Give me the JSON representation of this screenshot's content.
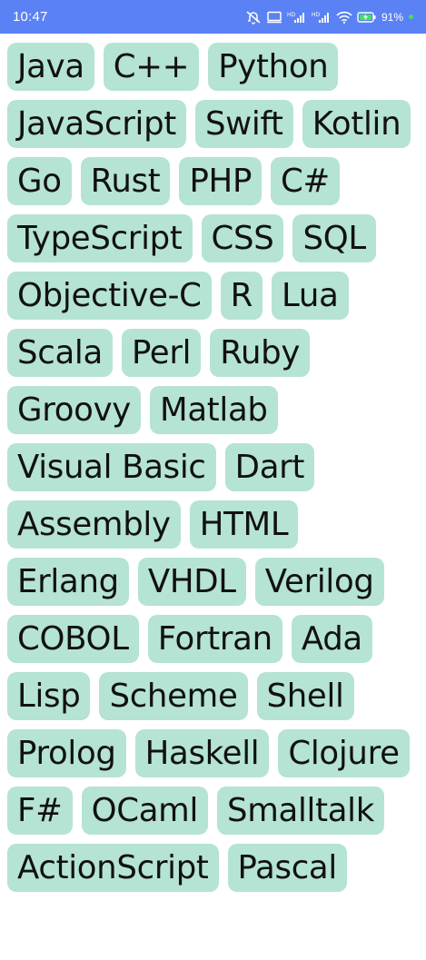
{
  "status_bar": {
    "time": "10:47",
    "battery_percent": "91",
    "battery_suffix": "%",
    "icons": [
      "muted-icon",
      "cast-icon",
      "hd-signal-icon",
      "hd-signal-icon",
      "wifi-icon",
      "battery-charging-icon"
    ],
    "background_color": "#5b82f4",
    "charging_dot_color": "#3ee06a"
  },
  "chip_color": "#b5e3d4",
  "languages": [
    "Java",
    "C++",
    "Python",
    "JavaScript",
    "Swift",
    "Kotlin",
    "Go",
    "Rust",
    "PHP",
    "C#",
    "TypeScript",
    "CSS",
    "SQL",
    "Objective-C",
    "R",
    "Lua",
    "Scala",
    "Perl",
    "Ruby",
    "Groovy",
    "Matlab",
    "Visual Basic",
    "Dart",
    "Assembly",
    "HTML",
    "Erlang",
    "VHDL",
    "Verilog",
    "COBOL",
    "Fortran",
    "Ada",
    "Lisp",
    "Scheme",
    "Shell",
    "Prolog",
    "Haskell",
    "Clojure",
    "F#",
    "OCaml",
    "Smalltalk",
    "ActionScript",
    "Pascal"
  ]
}
